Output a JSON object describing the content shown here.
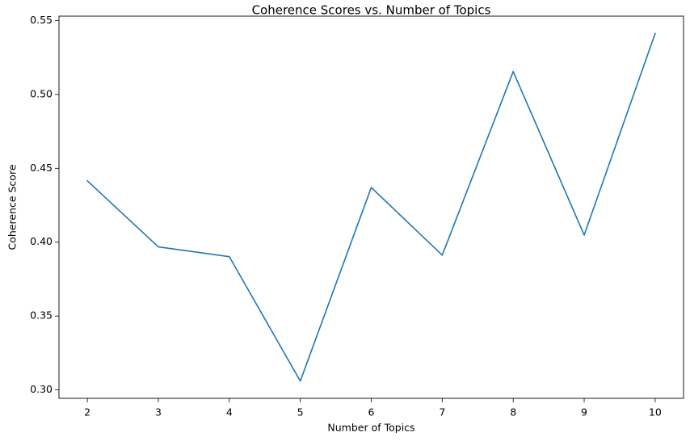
{
  "chart_data": {
    "type": "line",
    "title": "Coherence Scores vs. Number of Topics",
    "xlabel": "Number of Topics",
    "ylabel": "Coherence Score",
    "x": [
      2,
      3,
      4,
      5,
      6,
      7,
      8,
      9,
      10
    ],
    "series": [
      {
        "values": [
          0.4415,
          0.3968,
          0.3902,
          0.306,
          0.437,
          0.3912,
          0.5155,
          0.4048,
          0.5413
        ]
      }
    ],
    "xlim": [
      1.6,
      10.4
    ],
    "ylim": [
      0.2943,
      0.553
    ],
    "xticks": [
      "2",
      "3",
      "4",
      "5",
      "6",
      "7",
      "8",
      "9",
      "10"
    ],
    "yticks": [
      "0.30",
      "0.35",
      "0.40",
      "0.45",
      "0.50",
      "0.55"
    ],
    "grid": false,
    "line_color": "#1f77b4"
  }
}
